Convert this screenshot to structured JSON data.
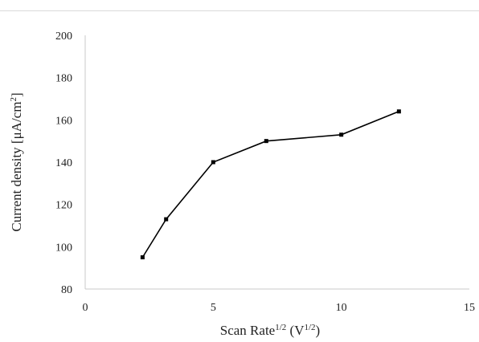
{
  "chart_data": {
    "type": "line",
    "title": "",
    "xlabel_main": "Scan Rate",
    "xlabel_sup": "1/2",
    "xlabel_unit_open": " (V",
    "xlabel_unit_sup": "1/2",
    "xlabel_unit_close": ")",
    "ylabel_main": "Current density [μA/cm",
    "ylabel_sup": "2",
    "ylabel_close": "]",
    "xlim": [
      0,
      15
    ],
    "ylim": [
      80,
      200
    ],
    "xticks": [
      0,
      5,
      10,
      15
    ],
    "yticks": [
      80,
      100,
      120,
      140,
      160,
      180,
      200
    ],
    "grid": false,
    "series": [
      {
        "x": [
          2.24,
          3.16,
          5.0,
          7.07,
          10.0,
          12.25
        ],
        "y": [
          95,
          113,
          140,
          150,
          153,
          164
        ]
      }
    ],
    "colors": {
      "line": "#000000",
      "marker": "#000000",
      "axis": "#c8c8c8"
    }
  }
}
